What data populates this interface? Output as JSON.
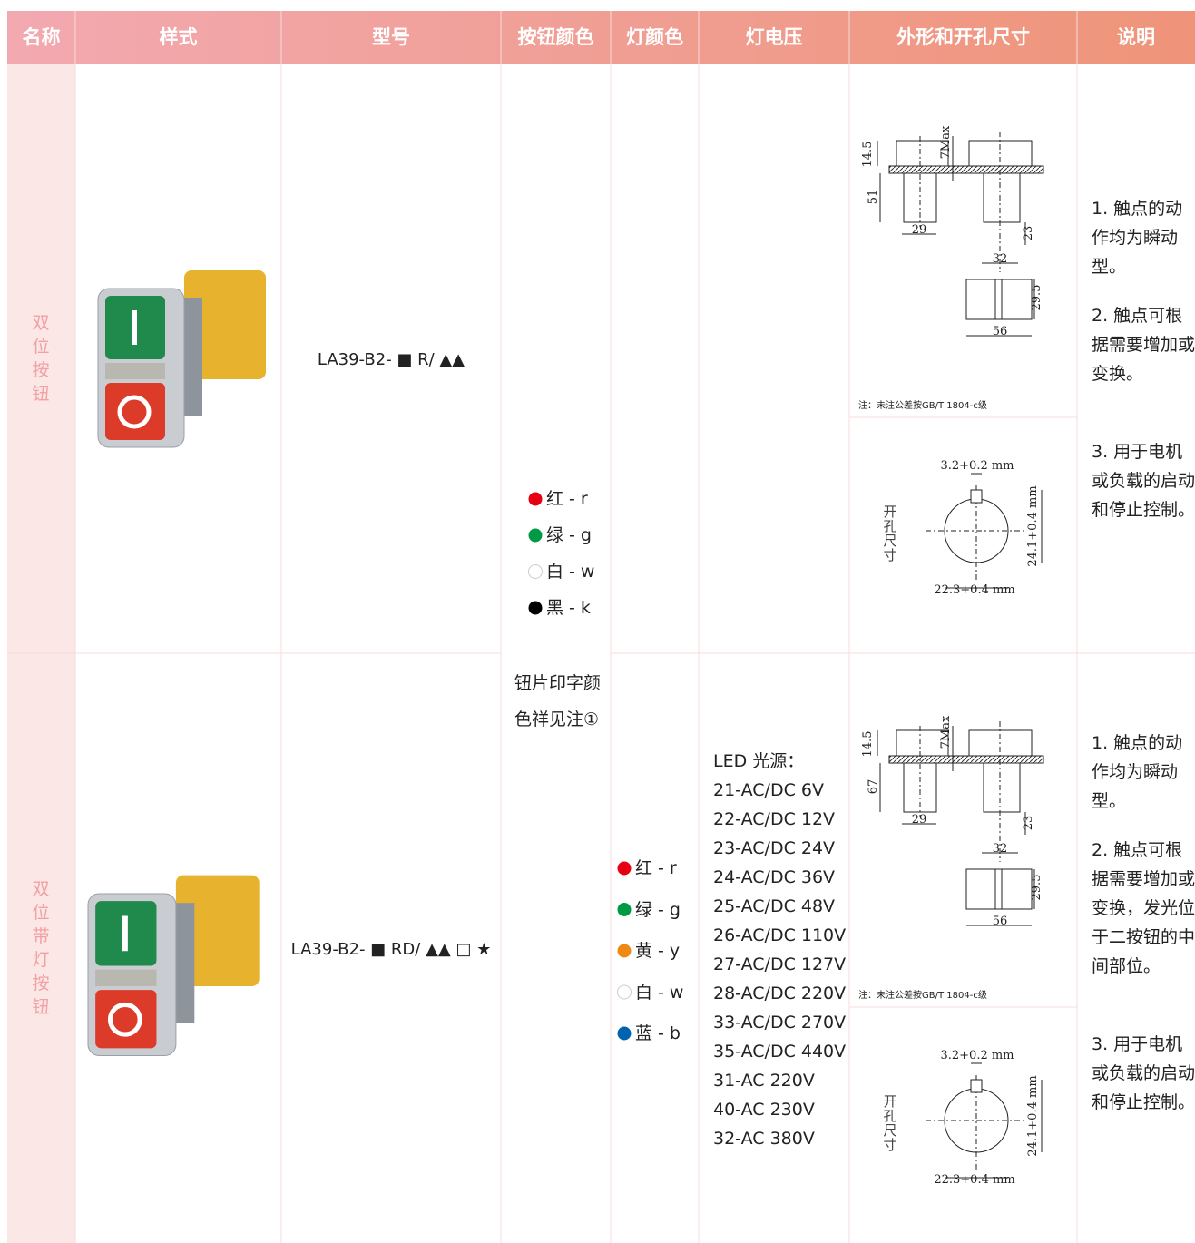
{
  "table": {
    "header": [
      "名称",
      "样式",
      "型号",
      "按钮颜色",
      "灯颜色",
      "灯电压",
      "外形和开孔尺寸",
      "说明"
    ],
    "button_colors": [
      {
        "label": "红 - r",
        "color": "#e60012"
      },
      {
        "label": "绿 - g",
        "color": "#009944"
      },
      {
        "label": "白 - w",
        "color": "#ffffff"
      },
      {
        "label": "黑 - k",
        "color": "#000000"
      }
    ],
    "button_color_note": "钮片印字颜色祥见注①",
    "rows": [
      {
        "name": "双位按钮",
        "model": "LA39-B2- ■ R/ ▲▲",
        "dimensions": {
          "labels": [
            "14.5",
            "7Max",
            "51",
            "29",
            "32",
            "23",
            "29.5",
            "56"
          ],
          "note": "注：未注公差按GB/T 1804-c级",
          "hole_title": "开孔尺寸",
          "hole_labels": [
            "3.2+0.2 mm",
            "24.1+0.4 mm",
            "22.3+0.4 mm"
          ]
        },
        "notes": [
          "1. 触点的动作均为瞬动型。",
          "2. 触点可根据需要增加或变换。",
          "3. 用于电机或负载的启动和停止控制。"
        ]
      },
      {
        "name": "双位带灯按钮",
        "model": "LA39-B2- ■ RD/ ▲▲ □ ★",
        "lamp_colors": [
          {
            "label": "红 - r",
            "color": "#e60012"
          },
          {
            "label": "绿 - g",
            "color": "#009944"
          },
          {
            "label": "黄 - y",
            "color": "#ee8a14"
          },
          {
            "label": "白 - w",
            "color": "#ffffff"
          },
          {
            "label": "蓝 - b",
            "color": "#0063b1"
          }
        ],
        "voltage": {
          "title": "LED 光源：",
          "items": [
            "21-AC/DC 6V",
            "22-AC/DC 12V",
            "23-AC/DC 24V",
            "24-AC/DC 36V",
            "25-AC/DC 48V",
            "26-AC/DC 110V",
            "27-AC/DC 127V",
            "28-AC/DC 220V",
            "33-AC/DC 270V",
            "35-AC/DC 440V",
            "31-AC 220V",
            "40-AC 230V",
            "32-AC 380V"
          ]
        },
        "dimensions": {
          "labels": [
            "14.5",
            "7Max",
            "67",
            "29",
            "32",
            "23",
            "29.5",
            "56"
          ],
          "note": "注：未注公差按GB/T 1804-c级",
          "hole_title": "开孔尺寸",
          "hole_labels": [
            "3.2+0.2 mm",
            "24.1+0.4 mm",
            "22.3+0.4 mm"
          ]
        },
        "notes": [
          "1. 触点的动作均为瞬动型。",
          "2. 触点可根据需要增加或变换，发光位于二按钮的中间部位。",
          "3. 用于电机或负载的启动和停止控制。"
        ]
      }
    ]
  }
}
